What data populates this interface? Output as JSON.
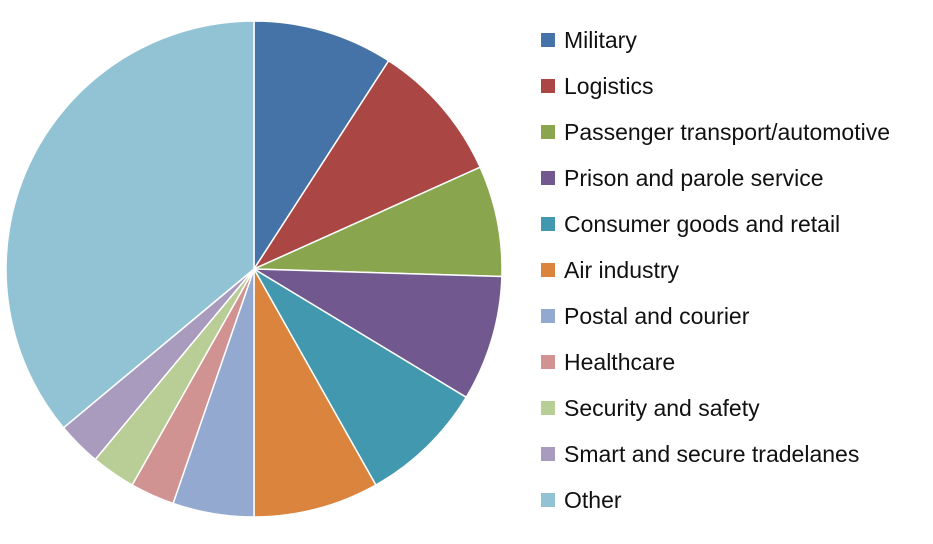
{
  "chart_data": {
    "type": "pie",
    "title": "",
    "legend_placement": "right",
    "start_angle": "top, clockwise",
    "series": [
      {
        "values": [
          {
            "category": "Military",
            "value": 9.5,
            "color": "#4572A7"
          },
          {
            "category": "Logistics",
            "value": 9.5,
            "color": "#AA4643"
          },
          {
            "category": "Passenger transport/automotive",
            "value": 7.5,
            "color": "#89A54E"
          },
          {
            "category": "Prison and parole service",
            "value": 8.5,
            "color": "#71588F"
          },
          {
            "category": "Consumer goods and retail",
            "value": 8.5,
            "color": "#4198AF"
          },
          {
            "category": "Air industry",
            "value": 8.5,
            "color": "#DB843D"
          },
          {
            "category": "Postal and courier",
            "value": 5.5,
            "color": "#93A9CF"
          },
          {
            "category": "Healthcare",
            "value": 3.0,
            "color": "#D19392"
          },
          {
            "category": "Security and safety",
            "value": 3.0,
            "color": "#B9CD96"
          },
          {
            "category": "Smart and secure tradelanes",
            "value": 3.0,
            "color": "#A99BBD"
          },
          {
            "category": "Other",
            "value": 37.5,
            "color": "#92C3D5"
          }
        ]
      }
    ]
  }
}
